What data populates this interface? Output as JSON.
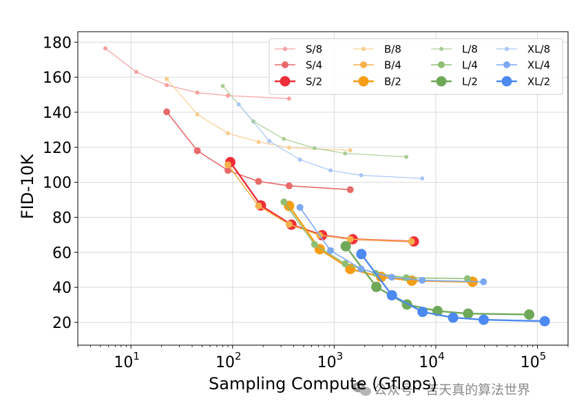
{
  "chart_data": {
    "type": "line",
    "xlabel": "Sampling Compute (Gflops)",
    "ylabel": "FID-10K",
    "xscale": "log",
    "xlim": [
      3,
      200000
    ],
    "ylim": [
      7,
      186
    ],
    "x_ticks": [
      {
        "value": 10,
        "base": "10",
        "exp": "1"
      },
      {
        "value": 100,
        "base": "10",
        "exp": "2"
      },
      {
        "value": 1000,
        "base": "10",
        "exp": "3"
      },
      {
        "value": 10000,
        "base": "10",
        "exp": "4"
      },
      {
        "value": 100000,
        "base": "10",
        "exp": "5"
      }
    ],
    "y_ticks": [
      20,
      40,
      60,
      80,
      100,
      120,
      140,
      160,
      180
    ],
    "grid": true,
    "legend_position": "top-right",
    "series": [
      {
        "name": "S/8",
        "color": "#f4a0a0",
        "size": "small",
        "points": [
          [
            5.6,
            176.5
          ],
          [
            11.3,
            163
          ],
          [
            22.5,
            155.5
          ],
          [
            45,
            151.2
          ],
          [
            90,
            149.5
          ],
          [
            360,
            147.8
          ]
        ]
      },
      {
        "name": "S/4",
        "color": "#e86a6a",
        "size": "medium",
        "points": [
          [
            22.5,
            140.2
          ],
          [
            45,
            118
          ],
          [
            90,
            106.8
          ],
          [
            180,
            100.5
          ],
          [
            360,
            98
          ],
          [
            1440,
            95.8
          ]
        ]
      },
      {
        "name": "S/2",
        "color": "#ee2e38",
        "size": "large",
        "points": [
          [
            95,
            111.5
          ],
          [
            190,
            86.8
          ],
          [
            380,
            75.8
          ],
          [
            760,
            69.8
          ],
          [
            1520,
            67.5
          ],
          [
            6080,
            66.2
          ]
        ]
      },
      {
        "name": "B/8",
        "color": "#f7cd8e",
        "size": "small",
        "points": [
          [
            22.5,
            159
          ],
          [
            45,
            138.8
          ],
          [
            90,
            128
          ],
          [
            180,
            123
          ],
          [
            360,
            119.8
          ],
          [
            1440,
            118.3
          ]
        ]
      },
      {
        "name": "B/4",
        "color": "#f6b04c",
        "size": "medium",
        "points": [
          [
            90,
            110
          ],
          [
            180,
            86.5
          ],
          [
            360,
            76
          ],
          [
            720,
            69.8
          ],
          [
            1440,
            67.5
          ],
          [
            5760,
            66.2
          ]
        ]
      },
      {
        "name": "B/2",
        "color": "#f59d14",
        "size": "large",
        "points": [
          [
            360,
            86.5
          ],
          [
            720,
            61.8
          ],
          [
            1440,
            50.5
          ],
          [
            2900,
            46
          ],
          [
            5800,
            43.8
          ],
          [
            23000,
            43.2
          ]
        ]
      },
      {
        "name": "L/8",
        "color": "#a9ce95",
        "size": "small",
        "points": [
          [
            80,
            155
          ],
          [
            160,
            134.8
          ],
          [
            320,
            124.8
          ],
          [
            640,
            119.5
          ],
          [
            1280,
            116.5
          ],
          [
            5120,
            114.5
          ]
        ]
      },
      {
        "name": "L/4",
        "color": "#8fbe73",
        "size": "medium",
        "points": [
          [
            320,
            88.8
          ],
          [
            640,
            64.5
          ],
          [
            1280,
            53.5
          ],
          [
            2560,
            48
          ],
          [
            5120,
            45.5
          ],
          [
            20480,
            45
          ]
        ]
      },
      {
        "name": "L/2",
        "color": "#6fa859",
        "size": "large",
        "points": [
          [
            1300,
            63.5
          ],
          [
            2600,
            40.3
          ],
          [
            5200,
            30.2
          ],
          [
            10400,
            26.5
          ],
          [
            20800,
            25
          ],
          [
            83000,
            24.5
          ]
        ]
      },
      {
        "name": "XL/8",
        "color": "#a8c6f5",
        "size": "small",
        "points": [
          [
            115,
            144.5
          ],
          [
            230,
            123.5
          ],
          [
            460,
            113
          ],
          [
            920,
            106.8
          ],
          [
            1840,
            104
          ],
          [
            7360,
            102.2
          ]
        ]
      },
      {
        "name": "XL/4",
        "color": "#7da8f2",
        "size": "medium",
        "points": [
          [
            460,
            85.7
          ],
          [
            920,
            61
          ],
          [
            1840,
            50.5
          ],
          [
            3680,
            45.8
          ],
          [
            7360,
            44
          ],
          [
            29440,
            43.2
          ]
        ]
      },
      {
        "name": "XL/2",
        "color": "#4c89f0",
        "size": "large",
        "points": [
          [
            1850,
            59
          ],
          [
            3700,
            35.5
          ],
          [
            7400,
            26
          ],
          [
            14800,
            22.7
          ],
          [
            29600,
            21.5
          ],
          [
            118000,
            20.7
          ]
        ]
      }
    ]
  },
  "watermark": {
    "text": "公众号 · 苦天真的算法世界",
    "icon": "wechat-icon"
  }
}
